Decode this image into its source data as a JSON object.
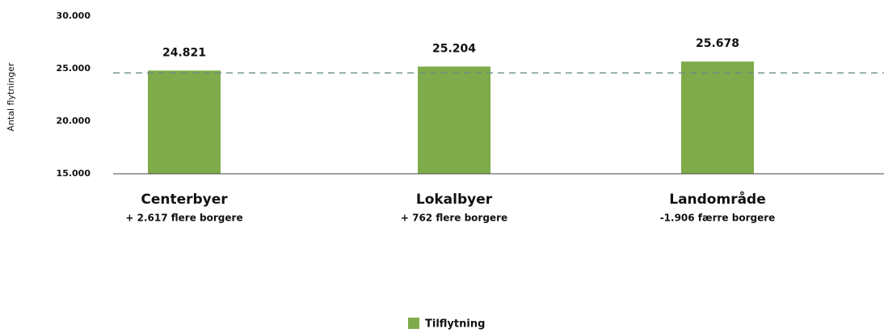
{
  "chart_data": {
    "type": "bar",
    "y_label": "Antal flytninger",
    "categories": [
      "Centerbyer",
      "Lokalbyer",
      "Landområde"
    ],
    "category_notes": [
      "+ 2.617 flere borgere",
      "+ 762 flere borgere",
      "-1.906 færre borgere"
    ],
    "series": [
      {
        "name": "Tilflytning",
        "color": "#7fab4a",
        "values": [
          24821,
          25204,
          25678
        ],
        "value_labels": [
          "24.821",
          "25.204",
          "25.678"
        ]
      }
    ],
    "reference_line": 24600,
    "ylim": [
      15000,
      30000
    ],
    "yticks": [
      {
        "value": 15000,
        "label": "15.000"
      },
      {
        "value": 20000,
        "label": "20.000"
      },
      {
        "value": 25000,
        "label": "25.000"
      },
      {
        "value": 30000,
        "label": "30.000"
      }
    ],
    "grid": false
  }
}
